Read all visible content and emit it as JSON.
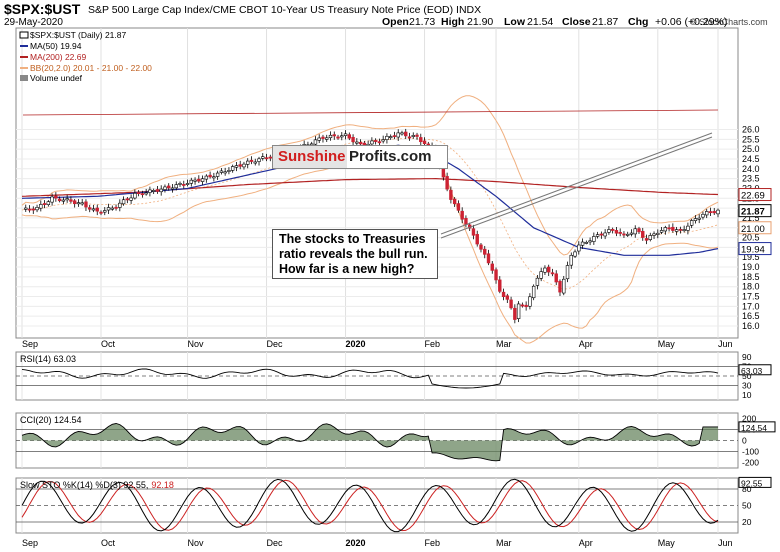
{
  "header": {
    "symbol": "$SPX:$UST",
    "description": "S&P 500 Large Cap Index/CME CBOT 10-Year US Treasury Note Price (EOD)  INDX",
    "date": "29-May-2020",
    "open_label": "Open",
    "open": "21.73",
    "high_label": "High",
    "high": "21.90",
    "low_label": "Low",
    "low": "21.54",
    "close_label": "Close",
    "close": "21.87",
    "chg_label": "Chg",
    "chg": "+0.06 (+0.29%)",
    "watermark": "© StockCharts.com"
  },
  "legend": {
    "main": "$SPX:$UST (Daily) 21.87",
    "ma50": "MA(50) 19.94",
    "ma200": "MA(200) 22.69",
    "bb": "BB(20,2.0) 20.01 - 21.00 - 22.00",
    "volume": "Volume undef"
  },
  "brand": {
    "part1": "Sunshine",
    "part2": "Profits.com"
  },
  "callout": {
    "line1": "The stocks to Treasuries",
    "line2": "ratio reveals the bull run.",
    "line3": "How far is a new high?"
  },
  "price_axis": {
    "ticks": [
      "26.0",
      "25.5",
      "25.0",
      "24.5",
      "24.0",
      "23.5",
      "23.0",
      "22.5",
      "22.0",
      "21.5",
      "21.0",
      "20.5",
      "20.0",
      "19.5",
      "19.0",
      "18.5",
      "18.0",
      "17.5",
      "17.0",
      "16.5",
      "16.0"
    ],
    "tags": {
      "ma200": {
        "value": "22.69",
        "color": "#b22222"
      },
      "close": {
        "value": "21.87",
        "color": "#000000"
      },
      "bb_mid": {
        "value": "21.00",
        "color": "#e8a070"
      },
      "ma50": {
        "value": "19.94",
        "color": "#1f2d9a"
      }
    }
  },
  "months": [
    "Sep",
    "Oct",
    "Nov",
    "Dec",
    "2020",
    "Feb",
    "Mar",
    "Apr",
    "May",
    "Jun"
  ],
  "rsi": {
    "label": "RSI(14) 63.03",
    "ticks": [
      "90",
      "70",
      "50",
      "30",
      "10"
    ],
    "tag": "63.03"
  },
  "cci": {
    "label": "CCI(20) 124.54",
    "ticks": [
      "200",
      "100",
      "0",
      "-100",
      "-200"
    ],
    "tag": "124.54"
  },
  "sto": {
    "label_prefix": "Slow STO %K(14) %D(3) 92.55,",
    "label_d": "92.18",
    "ticks": [
      "80",
      "50",
      "20"
    ],
    "tag": "92.55"
  },
  "colors": {
    "ma50": "#1f2d9a",
    "ma200": "#b22222",
    "bb": "#f0b080",
    "up": "#ffffff",
    "down": "#cc2233",
    "green": "#5f7f57",
    "brown": "#8b5a4a"
  },
  "chart_data": {
    "type": "line",
    "title": "$SPX:$UST",
    "y_range": [
      15.6,
      26.2
    ],
    "x": [
      "2019-09",
      "2019-10",
      "2019-11",
      "2019-12",
      "2020-01",
      "2020-02",
      "2020-03",
      "2020-04",
      "2020-05",
      "2020-06"
    ],
    "series": [
      {
        "name": "$SPX:$UST (Daily)",
        "values": [
          22.0,
          22.4,
          23.6,
          24.4,
          25.5,
          25.5,
          17.5,
          19.5,
          20.8,
          21.87
        ]
      },
      {
        "name": "MA(50)",
        "values": [
          22.5,
          22.6,
          23.0,
          23.8,
          24.6,
          25.2,
          23.0,
          20.5,
          19.6,
          19.94
        ]
      },
      {
        "name": "MA(200)",
        "values": [
          22.7,
          22.9,
          23.1,
          23.3,
          23.45,
          23.5,
          23.4,
          23.05,
          22.8,
          22.69
        ]
      }
    ]
  }
}
